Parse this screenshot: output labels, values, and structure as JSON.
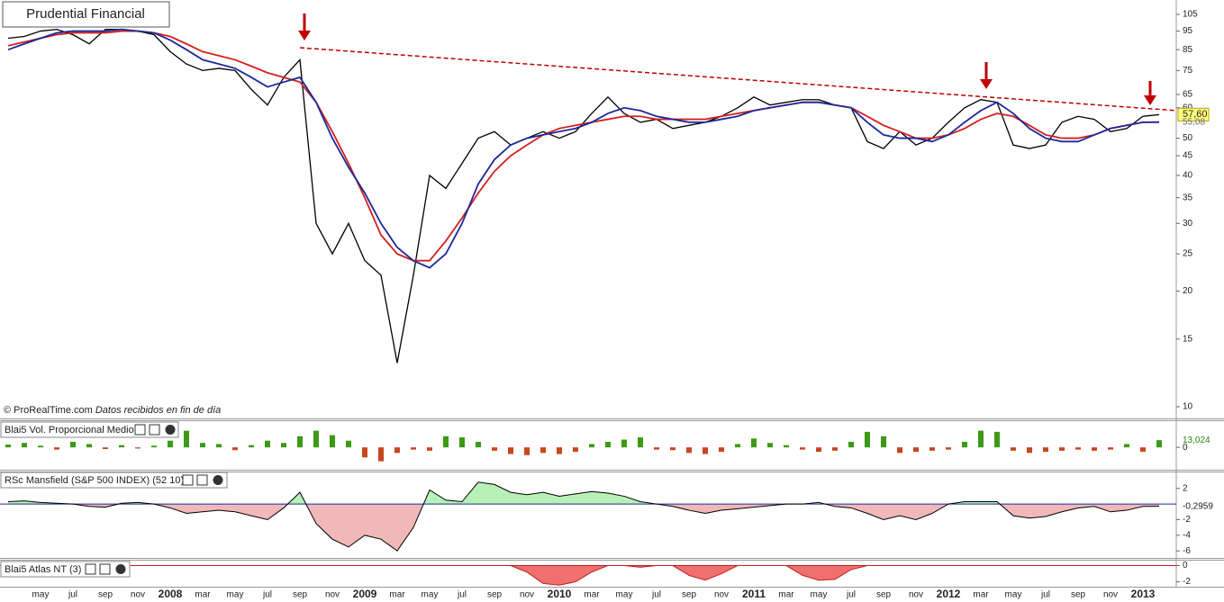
{
  "title_box": "Prudential Financial",
  "watermark": {
    "source": "© ProRealTime.com",
    "note": "Datos recibidos en fin de día"
  },
  "chart_data": [
    {
      "type": "line",
      "yscale": "log",
      "ylim": [
        10,
        105
      ],
      "yticks": [
        105,
        95,
        85,
        75,
        65,
        60,
        50,
        45,
        40,
        35,
        30,
        25,
        20,
        15,
        10
      ],
      "x_labels": [
        "may",
        "jul",
        "sep",
        "nov",
        "2008",
        "mar",
        "may",
        "jul",
        "sep",
        "nov",
        "2009",
        "mar",
        "may",
        "jul",
        "sep",
        "nov",
        "2010",
        "mar",
        "may",
        "jul",
        "sep",
        "nov",
        "2011",
        "mar",
        "may",
        "jul",
        "sep",
        "nov",
        "2012",
        "mar",
        "may",
        "jul",
        "sep",
        "nov",
        "2013"
      ],
      "series": [
        {
          "color": "#000000",
          "values": [
            91,
            92,
            95,
            96,
            93,
            88,
            96,
            96,
            95,
            93,
            84,
            78,
            75,
            76,
            75,
            67,
            61,
            72,
            80,
            30,
            25,
            30,
            24,
            22,
            13,
            22,
            40,
            37,
            43,
            50,
            52,
            48,
            50,
            52,
            50,
            52,
            58,
            64,
            58,
            55,
            56,
            53,
            54,
            55,
            57,
            60,
            64,
            61,
            62,
            63,
            63,
            61,
            60,
            49,
            47,
            52,
            48,
            50,
            55,
            60,
            63,
            62,
            48,
            47,
            48,
            55,
            57,
            56,
            52,
            53,
            57,
            57.6
          ]
        },
        {
          "color": "#d42020",
          "values": [
            87,
            89,
            91,
            93,
            94,
            94,
            94,
            95,
            95,
            94,
            92,
            88,
            84,
            82,
            80,
            77,
            74,
            72,
            70,
            62,
            52,
            43,
            35,
            28,
            25,
            24,
            24,
            27,
            31,
            36,
            41,
            45,
            48,
            51,
            53,
            54,
            55,
            56,
            57,
            57,
            56,
            56,
            56,
            56,
            57,
            58,
            59,
            60,
            61,
            62,
            62,
            61,
            60,
            57,
            54,
            52,
            50,
            50,
            51,
            53,
            56,
            58,
            57,
            54,
            51,
            50,
            50,
            51,
            53,
            54,
            55,
            55
          ]
        },
        {
          "color": "#1a2a9a",
          "values": [
            85,
            88,
            91,
            94,
            95,
            95,
            95,
            96,
            95,
            94,
            90,
            85,
            80,
            78,
            76,
            72,
            68,
            70,
            72,
            62,
            50,
            42,
            36,
            30,
            26,
            24,
            23,
            25,
            30,
            38,
            44,
            48,
            50,
            51,
            52,
            53,
            55,
            58,
            60,
            59,
            57,
            56,
            55,
            55,
            56,
            57,
            59,
            60,
            61,
            62,
            62,
            61,
            60,
            55,
            51,
            50,
            50,
            49,
            51,
            55,
            59,
            62,
            58,
            53,
            50,
            49,
            49,
            51,
            53,
            54,
            55,
            55.08
          ]
        }
      ],
      "last_value_labels": [
        {
          "value": 57.6,
          "label": "57,60"
        },
        {
          "value": 55.08,
          "label": "55,08"
        }
      ],
      "trendline": {
        "values": [
          86,
          59
        ],
        "color": "#c00000"
      }
    },
    {
      "type": "bar",
      "title": "Blai5 Vol. Proporcional Medio",
      "ylim": [
        -37,
        44
      ],
      "yticks": [
        0
      ],
      "colors": {
        "positive": "#3c9a14",
        "negative": "#c8461c"
      },
      "values": [
        5,
        8,
        3,
        -4,
        10,
        6,
        -3,
        4,
        -2,
        3,
        12,
        30,
        8,
        6,
        -5,
        4,
        12,
        8,
        20,
        30,
        22,
        12,
        -18,
        -25,
        -10,
        -4,
        -6,
        20,
        18,
        10,
        -6,
        -12,
        -14,
        -10,
        -12,
        -8,
        6,
        10,
        14,
        18,
        -4,
        -5,
        -10,
        -12,
        -8,
        6,
        16,
        8,
        4,
        -4,
        -8,
        -6,
        10,
        28,
        20,
        -10,
        -8,
        -6,
        -4,
        10,
        30,
        28,
        -6,
        -10,
        -8,
        -6,
        -4,
        -6,
        -4,
        6,
        -8,
        13.024
      ],
      "last_value_label": {
        "value": 13.024,
        "label": "13,024"
      }
    },
    {
      "type": "area",
      "title": "RSc Mansfield (S&P 500 INDEX) (52 10)",
      "ylim": [
        -6.9,
        3.7
      ],
      "yticks": [
        2,
        -2,
        -4,
        -6
      ],
      "colors": {
        "positive": "#b8f0b8",
        "negative": "#f0b8b8",
        "line": "#000000",
        "zero": "#1a2a9a"
      },
      "values": [
        0.3,
        0.4,
        0.2,
        0.1,
        0,
        -0.3,
        -0.4,
        0.1,
        0.2,
        0,
        -0.5,
        -1.2,
        -1.0,
        -0.8,
        -1.0,
        -1.5,
        -2.0,
        -0.5,
        1.5,
        -2.5,
        -4.5,
        -5.5,
        -4,
        -4.5,
        -6,
        -3,
        1.8,
        0.5,
        0.3,
        2.8,
        2.5,
        1.5,
        1.2,
        1.5,
        1.0,
        1.3,
        1.6,
        1.4,
        1.0,
        0.3,
        0,
        -0.3,
        -0.8,
        -1.2,
        -0.8,
        -0.6,
        -0.4,
        -0.2,
        0,
        0,
        0.2,
        -0.3,
        -0.5,
        -1.2,
        -2.0,
        -1.5,
        -2.0,
        -1.2,
        0,
        0.3,
        0.3,
        0.3,
        -1.5,
        -1.8,
        -1.6,
        -1.0,
        -0.5,
        -0.3,
        -1.0,
        -0.8,
        -0.3,
        -0.2959
      ],
      "last_value_label": {
        "value": -0.2959,
        "label": "-0,2959"
      }
    },
    {
      "type": "area",
      "title": "Blai5 Atlas NT (3)",
      "ylim": [
        -2.6,
        0.5
      ],
      "yticks": [
        0,
        -2
      ],
      "colors": {
        "positive": "#b8f0b8",
        "negative": "#f07070",
        "line": "#c02020",
        "zero": "#c02020"
      },
      "values": [
        0,
        0,
        0,
        0,
        0,
        0,
        0,
        0,
        0,
        0,
        0,
        0,
        0,
        0,
        0,
        0,
        0,
        0,
        0,
        0,
        0,
        0,
        0,
        0,
        0,
        0,
        0,
        0,
        0,
        0,
        0,
        0,
        -0.8,
        -2.2,
        -2.4,
        -2.0,
        -0.8,
        0,
        0,
        -0.2,
        0,
        0,
        -1.2,
        -1.8,
        -1.0,
        0,
        0,
        0,
        0,
        -1.2,
        -1.8,
        -1.7,
        -0.5,
        0,
        0,
        0,
        0,
        0,
        0,
        0,
        0,
        0,
        0,
        0,
        0,
        0,
        0,
        0,
        0,
        0,
        0,
        0
      ]
    }
  ]
}
